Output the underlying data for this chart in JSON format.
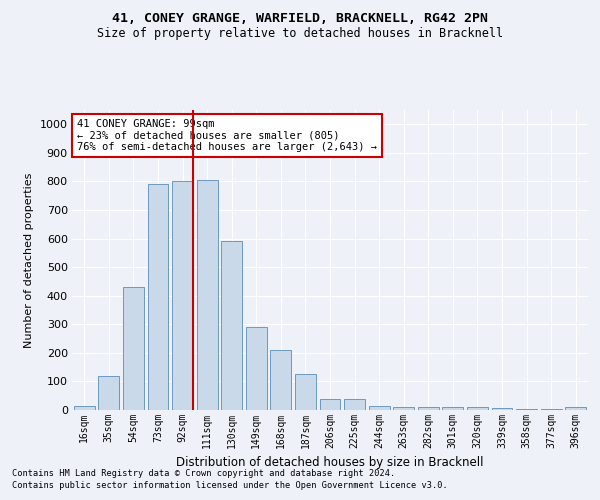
{
  "title1": "41, CONEY GRANGE, WARFIELD, BRACKNELL, RG42 2PN",
  "title2": "Size of property relative to detached houses in Bracknell",
  "xlabel": "Distribution of detached houses by size in Bracknell",
  "ylabel": "Number of detached properties",
  "categories": [
    "16sqm",
    "35sqm",
    "54sqm",
    "73sqm",
    "92sqm",
    "111sqm",
    "130sqm",
    "149sqm",
    "168sqm",
    "187sqm",
    "206sqm",
    "225sqm",
    "244sqm",
    "263sqm",
    "282sqm",
    "301sqm",
    "320sqm",
    "339sqm",
    "358sqm",
    "377sqm",
    "396sqm"
  ],
  "values": [
    15,
    120,
    430,
    790,
    800,
    805,
    590,
    290,
    210,
    125,
    40,
    40,
    15,
    12,
    10,
    10,
    10,
    8,
    5,
    5,
    10
  ],
  "highlight_index": 4,
  "bar_color": "#c9d9ea",
  "bar_edge_color": "#5b8db8",
  "highlight_line_color": "#cc0000",
  "annotation_text": "41 CONEY GRANGE: 99sqm\n← 23% of detached houses are smaller (805)\n76% of semi-detached houses are larger (2,643) →",
  "annotation_box_facecolor": "#ffffff",
  "annotation_box_edgecolor": "#cc0000",
  "bg_color": "#eef2f8",
  "grid_color": "#ffffff",
  "ylim": [
    0,
    1050
  ],
  "yticks": [
    0,
    100,
    200,
    300,
    400,
    500,
    600,
    700,
    800,
    900,
    1000
  ],
  "footnote1": "Contains HM Land Registry data © Crown copyright and database right 2024.",
  "footnote2": "Contains public sector information licensed under the Open Government Licence v3.0."
}
